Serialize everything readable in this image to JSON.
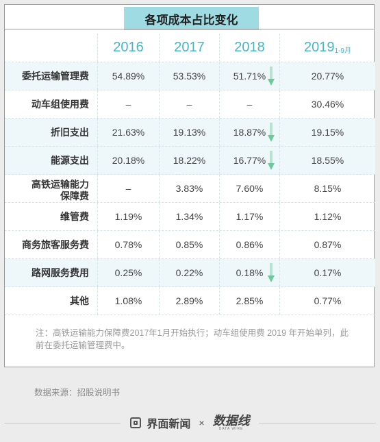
{
  "title": "各项成本占比变化",
  "header": {
    "y2016": "2016",
    "y2017": "2017",
    "y2018": "2018",
    "y2019": "2019",
    "y2019_sub": "1-9月"
  },
  "rows": [
    {
      "name": "委托运输管理费",
      "v2016": "54.89%",
      "v2017": "53.53%",
      "v2018": "51.71%",
      "v2019": "20.77%"
    },
    {
      "name": "动车组使用费",
      "v2016": "–",
      "v2017": "–",
      "v2018": "–",
      "v2019": "30.46%"
    },
    {
      "name": "折旧支出",
      "v2016": "21.63%",
      "v2017": "19.13%",
      "v2018": "18.87%",
      "v2019": "19.15%"
    },
    {
      "name": "能源支出",
      "v2016": "20.18%",
      "v2017": "18.22%",
      "v2018": "16.77%",
      "v2019": "18.55%"
    },
    {
      "name_line1": "高铁运输能力",
      "name_line2": "保障费",
      "v2016": "–",
      "v2017": "3.83%",
      "v2018": "7.60%",
      "v2019": "8.15%"
    },
    {
      "name": "维管费",
      "v2016": "1.19%",
      "v2017": "1.34%",
      "v2018": "1.17%",
      "v2019": "1.12%"
    },
    {
      "name": "商务旅客服务费",
      "v2016": "0.78%",
      "v2017": "0.85%",
      "v2018": "0.86%",
      "v2019": "0.87%"
    },
    {
      "name": "路网服务费用",
      "v2016": "0.25%",
      "v2017": "0.22%",
      "v2018": "0.18%",
      "v2019": "0.17%"
    },
    {
      "name": "其他",
      "v2016": "1.08%",
      "v2017": "2.89%",
      "v2018": "2.85%",
      "v2019": "0.77%"
    }
  ],
  "note": "注：高铁运输能力保障费2017年1月开始执行；动车组使用费 2019 年开始单列，此前在委托运输管理费中。",
  "source": "数据来源：招股说明书",
  "footer": {
    "brand1": "界面新闻",
    "times": "×",
    "brand2": "数据线",
    "brand2_sub": "DATA WIRE"
  },
  "colors": {
    "title_band": "#9fdbe3",
    "header_text": "#43b7c7",
    "row_highlight": "#eef8fa",
    "down_arrow": "#6fc79d"
  },
  "icons": {
    "down_arrow": "down-arrow-icon",
    "brand_logo": "jiemian-logo-icon"
  }
}
